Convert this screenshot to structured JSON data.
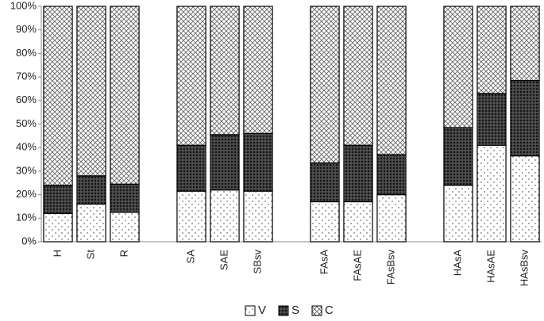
{
  "chart_data": {
    "type": "bar",
    "stacked": true,
    "categories": [
      "H",
      "St",
      "R",
      null,
      "SA",
      "SAE",
      "SBsv",
      null,
      "FAsA",
      "FAsAE",
      "FAsBsv",
      null,
      "HAsA",
      "HAsAE",
      "HAsBsv"
    ],
    "series": [
      {
        "name": "V",
        "values": [
          12,
          16,
          12.5,
          null,
          21.5,
          22,
          21.5,
          null,
          17,
          17,
          20,
          null,
          24,
          41,
          36.5
        ]
      },
      {
        "name": "S",
        "values": [
          12,
          12,
          12,
          null,
          19.5,
          23.5,
          24.5,
          null,
          16.5,
          24,
          17,
          null,
          24.5,
          22,
          32
        ]
      },
      {
        "name": "C",
        "values": [
          76,
          72,
          75.5,
          null,
          59,
          54.5,
          54,
          null,
          66.5,
          59,
          63,
          null,
          51.5,
          37,
          31.5
        ]
      }
    ],
    "ylim": [
      0,
      100
    ],
    "yticks": [
      {
        "value": 0,
        "label": "0%"
      },
      {
        "value": 10,
        "label": "10%"
      },
      {
        "value": 20,
        "label": "20%"
      },
      {
        "value": 30,
        "label": "30%"
      },
      {
        "value": 40,
        "label": "40%"
      },
      {
        "value": 50,
        "label": "50%"
      },
      {
        "value": 60,
        "label": "60%"
      },
      {
        "value": 70,
        "label": "70%"
      },
      {
        "value": 80,
        "label": "80%"
      },
      {
        "value": 90,
        "label": "90%"
      },
      {
        "value": 100,
        "label": "100%"
      }
    ],
    "grid": false,
    "legend": "bottom"
  }
}
